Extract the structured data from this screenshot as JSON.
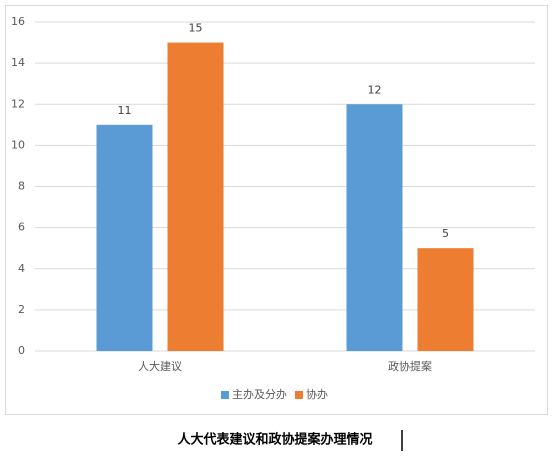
{
  "chart_data": {
    "type": "bar",
    "categories": [
      "人大建议",
      "政协提案"
    ],
    "series": [
      {
        "name": "主办及分办",
        "color": "#5b9bd5",
        "values": [
          11,
          12
        ]
      },
      {
        "name": "协办",
        "color": "#ed7d31",
        "values": [
          15,
          5
        ]
      }
    ],
    "ylim": [
      0,
      16
    ],
    "yticks": [
      0,
      2,
      4,
      6,
      8,
      10,
      12,
      14,
      16
    ],
    "grid": true,
    "legend": "bottom"
  },
  "caption": "人大代表建议和政协提案办理情况"
}
